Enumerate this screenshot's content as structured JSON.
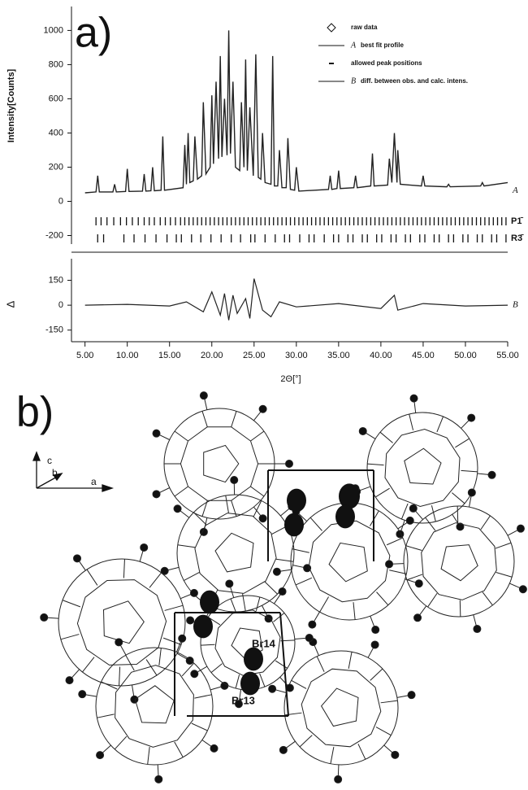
{
  "chart_data": {
    "type": "line",
    "panel_label": "a)",
    "ylabel": "Intensity[Counts]",
    "xlabel": "2Θ[°]",
    "xlim": [
      3.4,
      55
    ],
    "xticks": [
      {
        "value": 5,
        "label": "5.00"
      },
      {
        "value": 10,
        "label": "10.00"
      },
      {
        "value": 15,
        "label": "15.00"
      },
      {
        "value": 20,
        "label": "20.00"
      },
      {
        "value": 25,
        "label": "25.00"
      },
      {
        "value": 30,
        "label": "30.00"
      },
      {
        "value": 35,
        "label": "35.00"
      },
      {
        "value": 40,
        "label": "40.00"
      },
      {
        "value": 45,
        "label": "45.00"
      },
      {
        "value": 50,
        "label": "50.00"
      },
      {
        "value": 55,
        "label": "55.00"
      }
    ],
    "ylim": [
      -250,
      1140
    ],
    "yticks": [
      1000,
      800,
      600,
      400,
      200,
      0,
      -200
    ],
    "color": "#222222",
    "legend": [
      {
        "marker": "diamond",
        "text": "raw data"
      },
      {
        "marker": "line",
        "letter": "A",
        "text": "best fit profile"
      },
      {
        "marker": "dash",
        "text": "allowed peak positions"
      },
      {
        "marker": "line",
        "letter": "B",
        "text": "diff. between obs. and calc. intens."
      }
    ],
    "profile": {
      "label": "A",
      "x": [
        5,
        6.3,
        6.5,
        6.7,
        8.3,
        8.5,
        8.7,
        9.8,
        10,
        10.2,
        11.8,
        12,
        12.2,
        12.8,
        13,
        13.2,
        14,
        14.2,
        14.4,
        16.6,
        16.8,
        17,
        17.2,
        17.4,
        17.8,
        18,
        18.3,
        18.8,
        19,
        19.3,
        19.8,
        20,
        20.2,
        20.5,
        20.8,
        21,
        21.2,
        21.5,
        21.8,
        22,
        22.2,
        22.5,
        22.8,
        23.3,
        23.5,
        23.8,
        24,
        24.2,
        24.5,
        24.9,
        25.2,
        25.5,
        25.8,
        26,
        26.3,
        27,
        27.2,
        27.4,
        27.8,
        28,
        28.3,
        28.8,
        29,
        29.3,
        29.8,
        30,
        30.3,
        33.8,
        34,
        34.2,
        34.8,
        35,
        35.2,
        36.8,
        37,
        37.2,
        38.8,
        39,
        39.2,
        40.8,
        41,
        41.3,
        41.6,
        41.9,
        42,
        42.3,
        44.8,
        45,
        45.2,
        47.8,
        48,
        48.2,
        51.8,
        52,
        52.2,
        55
      ],
      "values": [
        50,
        55,
        150,
        55,
        55,
        100,
        55,
        58,
        190,
        58,
        60,
        160,
        60,
        62,
        200,
        62,
        65,
        380,
        65,
        80,
        330,
        100,
        400,
        110,
        120,
        380,
        130,
        150,
        580,
        160,
        200,
        620,
        220,
        700,
        250,
        850,
        260,
        600,
        270,
        1000,
        280,
        700,
        200,
        180,
        580,
        200,
        830,
        180,
        550,
        150,
        860,
        140,
        130,
        400,
        110,
        100,
        850,
        90,
        90,
        300,
        80,
        80,
        370,
        70,
        65,
        200,
        60,
        70,
        150,
        70,
        75,
        180,
        75,
        80,
        150,
        80,
        90,
        280,
        90,
        95,
        250,
        110,
        400,
        110,
        300,
        100,
        90,
        150,
        90,
        85,
        100,
        85,
        90,
        110,
        90,
        110
      ]
    },
    "phases": [
      {
        "name": "P1̄",
        "positions": [
          6.3,
          6.9,
          7.6,
          8.4,
          9.2,
          9.9,
          10.6,
          11.3,
          12.0,
          12.6,
          13.2,
          13.9,
          14.5,
          15.1,
          15.7,
          16.3,
          16.8,
          17.3,
          17.8,
          18.3,
          18.8,
          19.3,
          19.8,
          20.3,
          20.8,
          21.3,
          21.8,
          22.3,
          22.8,
          23.3,
          23.8,
          24.3,
          24.8,
          25.3,
          25.8,
          26.3,
          26.8,
          27.3,
          27.8,
          28.3,
          28.8,
          29.3,
          29.8,
          30.3,
          30.8,
          31.3,
          31.8,
          32.3,
          32.8,
          33.3,
          33.8,
          34.3,
          34.8,
          35.3,
          35.8,
          36.3,
          36.8,
          37.3,
          37.8,
          38.3,
          38.8,
          39.3,
          39.8,
          40.3,
          40.8,
          41.3,
          41.8,
          42.3,
          42.8,
          43.3,
          43.8,
          44.3,
          44.8,
          45.3,
          45.8,
          46.3,
          46.8,
          47.3,
          47.8,
          48.3,
          48.8,
          49.3,
          49.8,
          50.3,
          50.8,
          51.3,
          51.8,
          52.3,
          52.8,
          53.3,
          53.8,
          54.3,
          54.8
        ]
      },
      {
        "name": "R3̄",
        "positions": [
          6.5,
          7.2,
          9.6,
          10.8,
          12.1,
          13.4,
          14.7,
          15.8,
          16.4,
          17.6,
          18.7,
          19.9,
          21.1,
          22.3,
          23.4,
          24.6,
          25.1,
          26.3,
          27.5,
          28.6,
          29.2,
          30.4,
          31.5,
          32.1,
          33.3,
          34.4,
          35.0,
          36.1,
          36.7,
          37.8,
          38.4,
          39.5,
          40.1,
          41.2,
          41.8,
          42.9,
          43.5,
          44.6,
          45.2,
          46.3,
          46.9,
          48.0,
          48.6,
          49.7,
          50.3,
          51.4,
          52.0,
          53.1,
          53.7,
          54.8
        ]
      }
    ],
    "difference": {
      "label": "B",
      "ylabel": "Δ",
      "ylim": [
        -220,
        280
      ],
      "yticks": [
        150,
        0,
        -150
      ],
      "x": [
        5,
        10,
        15,
        17,
        19,
        20,
        21,
        21.5,
        22,
        22.5,
        23,
        24,
        24.5,
        25,
        26,
        27,
        28,
        30,
        35,
        40,
        41.6,
        42,
        45,
        50,
        55
      ],
      "values": [
        0,
        5,
        -5,
        20,
        -40,
        80,
        -60,
        70,
        -90,
        60,
        -50,
        40,
        -80,
        160,
        -30,
        -70,
        20,
        -10,
        10,
        -20,
        60,
        -30,
        10,
        -5,
        0
      ]
    }
  },
  "structure": {
    "panel_label": "b)",
    "axes": [
      "c",
      "b",
      "a"
    ],
    "atom_labels": [
      "Br14",
      "Br13"
    ]
  }
}
